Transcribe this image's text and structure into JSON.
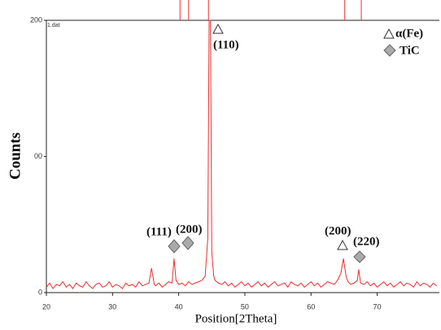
{
  "chart_data": {
    "type": "line",
    "file_label": "1.dat",
    "ylabel": "Counts",
    "xlabel": "Position[2Theta]",
    "x": [
      20,
      20.5,
      21,
      21.5,
      22,
      22.5,
      23,
      23.5,
      24,
      24.5,
      25,
      25.5,
      26,
      26.5,
      27,
      27.5,
      28,
      28.5,
      29,
      29.5,
      30,
      30.5,
      31,
      31.5,
      32,
      32.5,
      33,
      33.5,
      34,
      34.5,
      35,
      35.5,
      35.9,
      36.3,
      36.5,
      37,
      37.5,
      38,
      38.5,
      39,
      39.3,
      39.6,
      40,
      40.5,
      41,
      41.5,
      42,
      42.5,
      43,
      43.5,
      44,
      44.4,
      44.6,
      44.8,
      45,
      45.3,
      45.5,
      46,
      46.5,
      47,
      47.5,
      48,
      48.5,
      49,
      49.5,
      50,
      50.5,
      51,
      51.5,
      52,
      52.5,
      53,
      53.5,
      54,
      54.5,
      55,
      55.5,
      56,
      56.5,
      57,
      57.5,
      58,
      58.5,
      59,
      59.5,
      60,
      60.5,
      61,
      61.5,
      62,
      62.5,
      63,
      63.5,
      64,
      64.5,
      64.9,
      65.3,
      65.6,
      66,
      66.5,
      67,
      67.2,
      67.5,
      68,
      68.5,
      69,
      69.5,
      70,
      70.5,
      71,
      71.5,
      72,
      72.5,
      73,
      73.5,
      74,
      74.5,
      75,
      75.5,
      76,
      76.5,
      77,
      77.5,
      78,
      78.5,
      79
    ],
    "series": [
      {
        "color": "#e83030",
        "values": [
          4,
          7,
          3,
          6,
          5,
          8,
          4,
          6,
          3,
          7,
          5,
          4,
          8,
          5,
          3,
          6,
          7,
          4,
          5,
          8,
          4,
          6,
          5,
          3,
          7,
          5,
          6,
          4,
          8,
          5,
          6,
          7,
          18,
          6,
          5,
          7,
          4,
          6,
          8,
          7,
          25,
          9,
          6,
          7,
          5,
          8,
          6,
          7,
          8,
          9,
          12,
          40,
          200,
          200,
          30,
          12,
          9,
          7,
          6,
          8,
          5,
          7,
          4,
          6,
          8,
          5,
          7,
          4,
          6,
          8,
          5,
          7,
          4,
          6,
          8,
          5,
          6,
          7,
          4,
          8,
          6,
          5,
          7,
          4,
          6,
          8,
          5,
          7,
          4,
          6,
          8,
          7,
          6,
          9,
          14,
          25,
          12,
          8,
          6,
          7,
          9,
          17,
          7,
          6,
          8,
          5,
          7,
          4,
          6,
          8,
          5,
          7,
          4,
          6,
          8,
          5,
          7,
          6,
          4,
          8,
          5,
          7,
          6,
          4,
          7,
          5
        ]
      }
    ],
    "reference_lines": [
      40.2,
      41.5,
      44.5,
      65.1,
      67.6
    ],
    "xlim": [
      20,
      79.4
    ],
    "xticks": [
      20,
      30,
      40,
      50,
      60,
      70
    ],
    "ylim": [
      0,
      200
    ],
    "yticks": [
      0,
      {
        "value": 100,
        "label": "00"
      },
      200
    ],
    "annotations": [
      "(110)",
      "(111)",
      "(200)",
      "(200)",
      "(220)"
    ],
    "legend": [
      "α(Fe)",
      "TiC"
    ]
  }
}
